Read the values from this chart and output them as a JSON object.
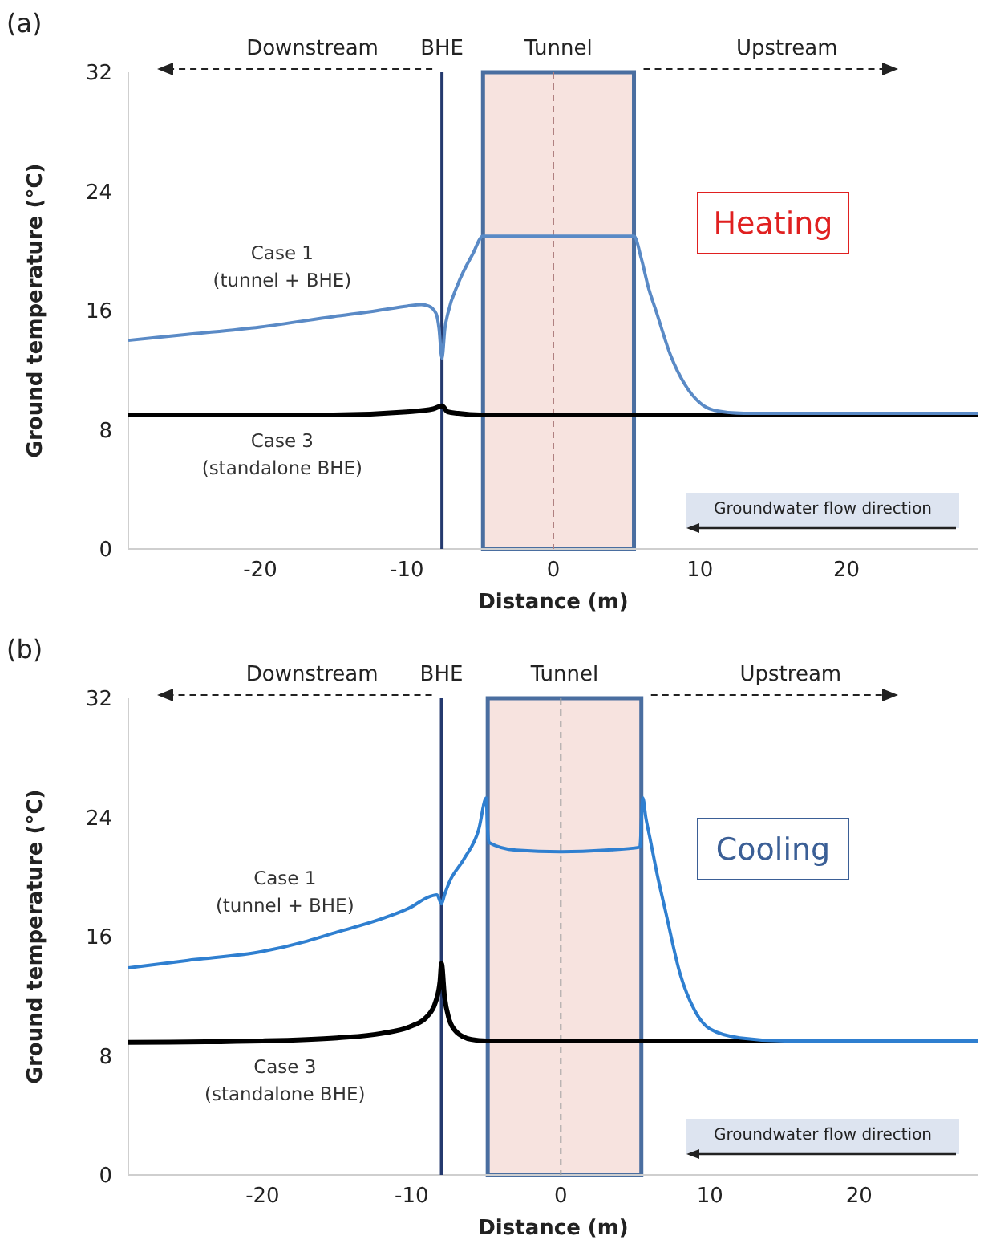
{
  "chart_data": [
    {
      "type": "line",
      "title": "(a)",
      "xlabel": "Distance (m)",
      "ylabel": "Ground temperature (°C)",
      "xlim": [
        -29,
        29
      ],
      "xticks": [
        -20,
        -10,
        0,
        10,
        20
      ],
      "ylim": [
        0,
        32
      ],
      "yticks": [
        0,
        8,
        16,
        24,
        32
      ],
      "series": [
        {
          "name": "Case 1 (tunnel + BHE)",
          "color": "#5a8ac6",
          "x": [
            -29,
            -25,
            -20,
            -15,
            -12,
            -10,
            -9,
            -8.5,
            -8,
            -7.8,
            -7.6,
            -7.4,
            -7.2,
            -6.5,
            -5.5,
            -4.8,
            0,
            5.5,
            6,
            6.5,
            7,
            8,
            9,
            10,
            11,
            13,
            29
          ],
          "values": [
            14.0,
            14.4,
            14.9,
            15.6,
            16.0,
            16.3,
            16.4,
            16.3,
            15.8,
            14.8,
            12.8,
            14.8,
            15.8,
            17.8,
            19.8,
            21.0,
            21.0,
            21.0,
            19.5,
            17.5,
            16.0,
            13.0,
            11.0,
            9.8,
            9.3,
            9.1,
            9.1
          ]
        },
        {
          "name": "Case 3 (standalone BHE)",
          "color": "#000000",
          "x": [
            -29,
            -15,
            -10,
            -8.2,
            -7.6,
            -7.2,
            -6.5,
            -5,
            29
          ],
          "values": [
            9.0,
            9.0,
            9.2,
            9.4,
            9.6,
            9.2,
            9.1,
            9.0,
            9.0
          ]
        }
      ],
      "ref_lines": [
        {
          "axis": "x",
          "value": -7.6,
          "label": "BHE",
          "color": "#24396e"
        },
        {
          "axis": "x",
          "value": 0,
          "color": "#b08080",
          "line_style": "dashed"
        }
      ],
      "bands": [
        {
          "axis": "x",
          "from": -4.8,
          "to": 5.5,
          "label": "Tunnel",
          "color": "#f7e3df"
        }
      ],
      "annotations": [
        "Downstream",
        "Upstream",
        "Heating",
        "Groundwater flow direction"
      ]
    },
    {
      "type": "line",
      "title": "(b)",
      "xlabel": "Distance (m)",
      "ylabel": "Ground temperature (°C)",
      "xlim": [
        -29,
        28
      ],
      "xticks": [
        -20,
        -10,
        0,
        10,
        20
      ],
      "ylim": [
        0,
        32
      ],
      "yticks": [
        0,
        8,
        16,
        24,
        32
      ],
      "series": [
        {
          "name": "Case 1 (tunnel + BHE)",
          "color": "#2f7fd0",
          "x": [
            -29,
            -25,
            -20,
            -17,
            -15,
            -12,
            -10,
            -9,
            -8.3,
            -8,
            -7.8,
            -7.5,
            -6.5,
            -5.5,
            -5.0,
            -4.9,
            -4.8,
            -3,
            0,
            3,
            5.3,
            5.5,
            5.7,
            6,
            6.5,
            7,
            8,
            9,
            10,
            12,
            15,
            28
          ],
          "values": [
            13.9,
            14.4,
            15.0,
            15.7,
            16.3,
            17.2,
            18.0,
            18.6,
            18.8,
            18.2,
            18.8,
            19.6,
            21.2,
            23.2,
            25.3,
            23.0,
            22.3,
            21.8,
            21.7,
            21.8,
            22.0,
            25.3,
            24.0,
            22.5,
            20.0,
            17.8,
            13.5,
            11.0,
            9.8,
            9.2,
            9.0,
            9.0
          ]
        },
        {
          "name": "Case 3 (standalone BHE)",
          "color": "#000000",
          "x": [
            -29,
            -20,
            -15,
            -12,
            -10,
            -9,
            -8.4,
            -8.1,
            -8,
            -7.8,
            -7.5,
            -7,
            -6,
            -5,
            28
          ],
          "values": [
            8.9,
            9.0,
            9.2,
            9.5,
            10.0,
            10.6,
            11.6,
            13.0,
            14.2,
            12.0,
            10.5,
            9.6,
            9.1,
            9.0,
            9.0
          ]
        }
      ],
      "ref_lines": [
        {
          "axis": "x",
          "value": -8,
          "label": "BHE",
          "color": "#24396e"
        },
        {
          "axis": "x",
          "value": 0,
          "color": "#a0a0a0",
          "line_style": "dashed"
        }
      ],
      "bands": [
        {
          "axis": "x",
          "from": -4.9,
          "to": 5.4,
          "label": "Tunnel",
          "color": "#f7e3df"
        }
      ],
      "annotations": [
        "Downstream",
        "Upstream",
        "Cooling",
        "Groundwater flow direction"
      ]
    }
  ]
}
